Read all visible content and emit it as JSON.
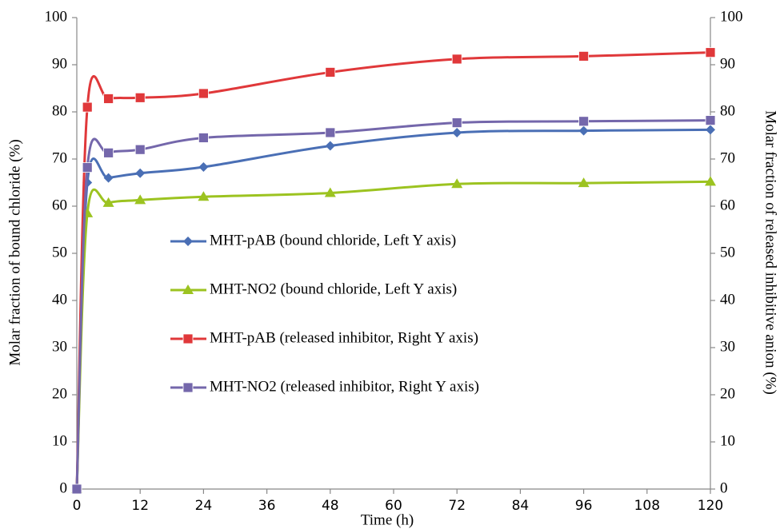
{
  "chart_data": {
    "type": "line",
    "xlabel": "Time (h)",
    "ylabel": "Molar fraction of bound chloride (%)",
    "y2label": "Molar fraction of released inhibitive anion (%)",
    "x": [
      0,
      2,
      6,
      12,
      24,
      48,
      72,
      96,
      120
    ],
    "xlim": [
      0,
      120
    ],
    "xticks": [
      0,
      12,
      24,
      36,
      48,
      60,
      72,
      84,
      96,
      108,
      120
    ],
    "ylim": [
      0,
      100
    ],
    "yticks": [
      0,
      10,
      20,
      30,
      40,
      50,
      60,
      70,
      80,
      90,
      100
    ],
    "y2lim": [
      0,
      100
    ],
    "y2ticks": [
      0,
      10,
      20,
      30,
      40,
      50,
      60,
      70,
      80,
      90,
      100
    ],
    "grid": false,
    "legend": "center",
    "series": [
      {
        "name": "MHT-pAB (bound chloride, Left Y axis)",
        "color": "#4a6fb5",
        "marker": "diamond",
        "axis": "y",
        "values": [
          0,
          65,
          66,
          67,
          68.3,
          72.8,
          75.6,
          76,
          76.2
        ]
      },
      {
        "name": "MHT-NO2 (bound chloride, Left Y axis)",
        "color": "#9cc320",
        "marker": "triangle",
        "axis": "y",
        "values": [
          0,
          58.5,
          60.7,
          61.3,
          62,
          62.8,
          64.7,
          64.9,
          65.2
        ]
      },
      {
        "name": "MHT-pAB (released inhibitor, Right Y axis)",
        "color": "#e0383a",
        "marker": "square",
        "axis": "y2",
        "values": [
          0,
          81,
          82.8,
          83,
          83.9,
          88.4,
          91.2,
          91.8,
          92.6
        ]
      },
      {
        "name": "MHT-NO2 (released inhibitor, Right Y axis)",
        "color": "#7467ab",
        "marker": "square",
        "axis": "y2",
        "values": [
          0,
          68.2,
          71.3,
          72,
          74.5,
          75.6,
          77.7,
          78,
          78.2
        ]
      }
    ]
  }
}
